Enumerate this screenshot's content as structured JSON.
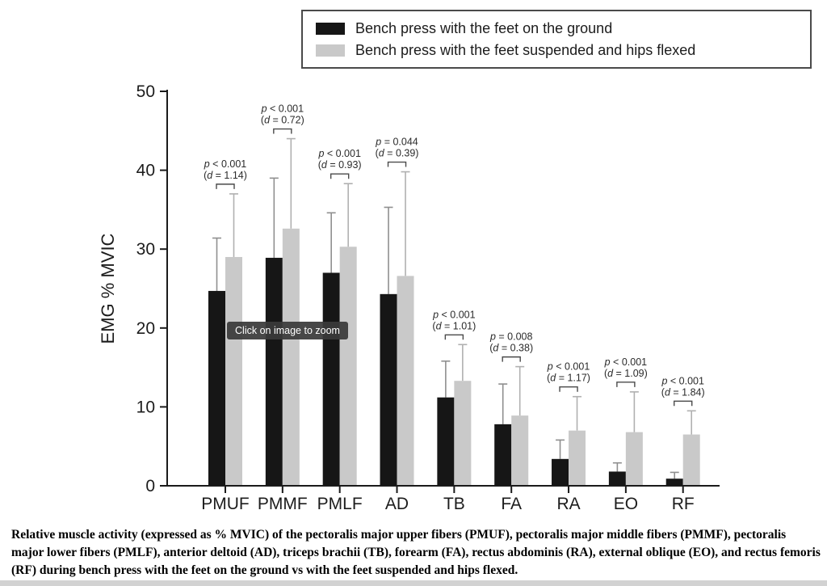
{
  "overlay": {
    "tooltip": "Click on image to zoom"
  },
  "caption": {
    "text": "Relative muscle activity (expressed as % MVIC) of the pectoralis major upper fibers (PMUF), pectoralis major middle fibers (PMMF), pectoralis major lower fibers (PMLF), anterior deltoid (AD), triceps brachii (TB), forearm (FA), rectus abdominis (RA), external oblique (EO), and rectus femoris (RF) during bench press with the feet on the ground vs with the feet suspended and hips flexed."
  },
  "chart_data": {
    "type": "bar",
    "title": "",
    "xlabel": "",
    "ylabel": "EMG % MVIC",
    "ylim": [
      0,
      50
    ],
    "yticks": [
      0,
      10,
      20,
      30,
      40,
      50
    ],
    "grid": false,
    "legend_position": "top",
    "categories": [
      "PMUF",
      "PMMF",
      "PMLF",
      "AD",
      "TB",
      "FA",
      "RA",
      "EO",
      "RF"
    ],
    "series": [
      {
        "name": "Bench press with the feet on the ground",
        "color": "#161616",
        "error_color": "#8f8f8f",
        "values": [
          24.7,
          28.9,
          27.0,
          24.3,
          11.2,
          7.8,
          3.4,
          1.8,
          0.9
        ],
        "errors_up": [
          6.7,
          10.1,
          7.6,
          11.0,
          4.6,
          5.1,
          2.4,
          1.1,
          0.8
        ]
      },
      {
        "name": "Bench press with the feet suspended and hips flexed",
        "color": "#c9c9c9",
        "error_color": "#b0b0b0",
        "values": [
          29.0,
          32.6,
          30.3,
          26.6,
          13.3,
          8.9,
          7.0,
          6.8,
          6.5
        ],
        "errors_up": [
          8.0,
          11.4,
          8.0,
          13.2,
          4.6,
          6.2,
          4.3,
          5.1,
          3.0
        ]
      }
    ],
    "annotations": [
      {
        "category": "PMUF",
        "p": "p < 0.001",
        "d": "(d = 1.14)"
      },
      {
        "category": "PMMF",
        "p": "p < 0.001",
        "d": "(d = 0.72)"
      },
      {
        "category": "PMLF",
        "p": "p < 0.001",
        "d": "(d = 0.93)"
      },
      {
        "category": "AD",
        "p": "p = 0.044",
        "d": "(d = 0.39)"
      },
      {
        "category": "TB",
        "p": "p < 0.001",
        "d": "(d = 1.01)"
      },
      {
        "category": "FA",
        "p": "p = 0.008",
        "d": "(d = 0.38)"
      },
      {
        "category": "RA",
        "p": "p < 0.001",
        "d": "(d = 1.17)"
      },
      {
        "category": "EO",
        "p": "p < 0.001",
        "d": "(d = 1.09)"
      },
      {
        "category": "RF",
        "p": "p < 0.001",
        "d": "(d = 1.84)"
      }
    ],
    "axis_color": "#1a1a1a",
    "text_color": "#1c1c1c"
  }
}
